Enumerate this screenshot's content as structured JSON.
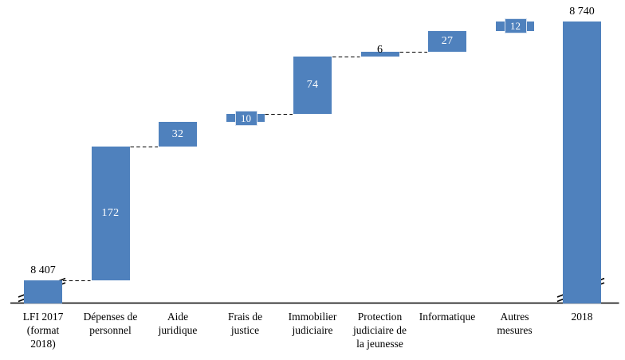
{
  "figure": {
    "background": "#ffffff",
    "description": "Waterfall chart of budget evolution from LFI 2017 to 2018 (millions of euros)"
  },
  "chart_data": {
    "type": "waterfall",
    "title": "",
    "xlabel": "",
    "ylabel": "",
    "bar_color": "#4f81bd",
    "connector_style": "dashed-black",
    "start_value": 8407,
    "end_value": 8740,
    "categories": [
      "LFI 2017 (format 2018)",
      "Dépenses de personnel",
      "Aide juridique",
      "Frais de justice",
      "Immobilier judiciaire",
      "Protection judiciaire de la jeunesse",
      "Informatique",
      "Autres mesures",
      "2018"
    ],
    "series": [
      {
        "name": "LFI 2017 (format 2018)",
        "label_lines": [
          "LFI 2017",
          "(format",
          "2018)"
        ],
        "role": "start",
        "value": 8407,
        "label": "8 407",
        "label_style": "above",
        "axis_break": true,
        "connector_after": true
      },
      {
        "name": "Dépenses de personnel",
        "label_lines": [
          "Dépenses de",
          "personnel"
        ],
        "role": "delta",
        "value": 172,
        "label": "172",
        "label_style": "inside",
        "axis_break": false,
        "connector_after": true
      },
      {
        "name": "Aide juridique",
        "label_lines": [
          "Aide",
          "juridique"
        ],
        "role": "delta",
        "value": 32,
        "label": "32",
        "label_style": "inside",
        "axis_break": false,
        "connector_after": false
      },
      {
        "name": "Frais de justice",
        "label_lines": [
          "Frais de",
          "justice"
        ],
        "role": "delta",
        "value": 10,
        "label": "10",
        "label_style": "boxed",
        "axis_break": false,
        "connector_after": true
      },
      {
        "name": "Immobilier judiciaire",
        "label_lines": [
          "Immobilier",
          "judiciaire"
        ],
        "role": "delta",
        "value": 74,
        "label": "74",
        "label_style": "inside",
        "axis_break": false,
        "connector_after": true
      },
      {
        "name": "Protection judiciaire de la jeunesse",
        "label_lines": [
          "Protection",
          "judiciaire de",
          "la jeunesse"
        ],
        "role": "delta",
        "value": 6,
        "label": "6",
        "label_style": "outside-black",
        "axis_break": false,
        "connector_after": true
      },
      {
        "name": "Informatique",
        "label_lines": [
          "Informatique"
        ],
        "role": "delta",
        "value": 27,
        "label": "27",
        "label_style": "inside",
        "axis_break": false,
        "connector_after": false
      },
      {
        "name": "Autres mesures",
        "label_lines": [
          "Autres",
          "mesures"
        ],
        "role": "delta",
        "value": 12,
        "label": "12",
        "label_style": "boxed",
        "axis_break": false,
        "connector_after": false
      },
      {
        "name": "2018",
        "label_lines": [
          "2018"
        ],
        "role": "end",
        "value": 8740,
        "label": "8 740",
        "label_style": "above",
        "axis_break": true,
        "connector_after": false
      }
    ],
    "axis": {
      "x_axis_line": true,
      "y_axis_shown": false,
      "gridlines": false,
      "axis_break_on_totals": true,
      "value_range_displayed": [
        8407,
        8740
      ]
    },
    "legend": null
  }
}
